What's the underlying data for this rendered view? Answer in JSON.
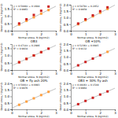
{
  "chart_data": [
    {
      "type": "scatter",
      "annotations": [
        "y = 0.5089x + 0.1688",
        "R² = 0.9963"
      ],
      "x_label": "Normal stress, N (kg/cm2)",
      "y_label": "Shear stress, t (kg/cm2)",
      "xlim": [
        0,
        3
      ],
      "ylim": [
        0,
        1.8
      ],
      "xticks": [
        0,
        1,
        2,
        3
      ],
      "yticks": [
        {
          "value": 0,
          "label": "0.0"
        },
        0.5,
        {
          "value": 1.0,
          "label": "1.0"
        },
        1.5
      ],
      "grid": false,
      "series": [
        {
          "type": "line",
          "color": "#999999",
          "x": [
            0,
            3
          ],
          "values": [
            0.1688,
            1.6955
          ]
        },
        {
          "color": "#FFA040",
          "marker": "square",
          "x": [
            0.5,
            1.0,
            1.5,
            2.0,
            2.5
          ],
          "values": [
            0.42,
            0.68,
            0.93,
            1.18,
            1.43
          ]
        },
        {
          "color": "#CC2222",
          "marker": "square",
          "x": [
            0.5,
            1.0,
            1.5,
            2.0,
            2.5
          ],
          "values": [
            0.5,
            0.79,
            1.09,
            1.38,
            1.67
          ]
        }
      ]
    },
    {
      "type": "scatter",
      "annotations": [
        "y = 0.5879x + 0.2052",
        "R² = 0.9959"
      ],
      "x_label": "Normal stress, N (kg/cm2)",
      "y_label": "Shear stress, t (kg/cm2)",
      "xlim": [
        0,
        3
      ],
      "ylim": [
        0,
        2.0
      ],
      "xticks": [
        0,
        1,
        2,
        3
      ],
      "yticks": [
        {
          "value": 0,
          "label": "0.0"
        },
        0.5,
        {
          "value": 1.0,
          "label": "1.0"
        },
        1.5,
        {
          "value": 2.0,
          "label": "2.0"
        }
      ],
      "grid": false,
      "series": [
        {
          "type": "line",
          "color": "#999999",
          "x": [
            0,
            3
          ],
          "values": [
            0.2052,
            1.9689
          ]
        },
        {
          "color": "#FFA040",
          "marker": "square",
          "x": [
            0.5,
            1.0,
            1.5,
            2.0,
            2.5
          ],
          "values": [
            0.5,
            0.8,
            1.1,
            1.38,
            1.67
          ]
        },
        {
          "color": "#CC2222",
          "marker": "square",
          "x": [
            0.5,
            1.0,
            1.5,
            2.0,
            2.5
          ],
          "values": [
            0.55,
            0.88,
            1.18,
            1.5,
            1.8
          ]
        }
      ]
    },
    {
      "type": "scatter",
      "title": "OB3",
      "annotations": [
        "y = 0.4714x + 0.2986",
        "R² = 0.9934"
      ],
      "x_label": "Normal stress, N (kg/cm2)",
      "y_label": "Shear stress, t (kg/cm2)",
      "xlim": [
        0,
        3
      ],
      "ylim": [
        0,
        1.8
      ],
      "xticks": [
        0,
        1,
        2,
        3
      ],
      "yticks": [
        {
          "value": 0,
          "label": "0.0"
        },
        0.5,
        {
          "value": 1.0,
          "label": "1.0"
        },
        1.5
      ],
      "grid": false,
      "series": [
        {
          "type": "line",
          "color": "#999999",
          "x": [
            0,
            3
          ],
          "values": [
            0.2986,
            1.7128
          ]
        },
        {
          "color": "#FFA040",
          "marker": "square",
          "x": [
            0.5,
            1.0,
            1.5,
            2.0
          ],
          "values": [
            0.54,
            0.77,
            1.01,
            1.24
          ]
        },
        {
          "color": "#CC2222",
          "marker": "square",
          "x": [
            0.5,
            1.0,
            1.5,
            2.0,
            2.5
          ],
          "values": [
            0.54,
            0.77,
            1.01,
            1.24,
            1.48
          ]
        }
      ]
    },
    {
      "type": "scatter",
      "title": "OB +10%",
      "annotations": [
        "y = 0.5236x + 0.0945",
        "R² = 0.9132"
      ],
      "x_label": "Normal stress, N (kg/cm2)",
      "y_label": "Shear stress, t (kg/cm2)",
      "xlim": [
        0,
        3
      ],
      "ylim": [
        0,
        2.0
      ],
      "xticks": [
        0,
        1,
        2,
        3
      ],
      "yticks": [
        {
          "value": 0,
          "label": "0.0"
        },
        0.5,
        {
          "value": 1.0,
          "label": "1.0"
        },
        1.5,
        {
          "value": 2.0,
          "label": "2.0"
        }
      ],
      "grid": false,
      "series": [
        {
          "type": "line",
          "color": "#999999",
          "x": [
            0,
            3
          ],
          "values": [
            0.0945,
            1.6653
          ]
        },
        {
          "color": "#FFA040",
          "marker": "square",
          "x": [
            2.5
          ],
          "values": [
            1.4
          ]
        },
        {
          "color": "#CC2222",
          "marker": "square",
          "x": [
            0.5,
            1.0,
            1.5,
            2.0
          ],
          "values": [
            0.36,
            0.62,
            0.88,
            1.14
          ]
        }
      ]
    },
    {
      "type": "scatter",
      "title": "OB + fly ash 20%",
      "annotations": [
        "y = 0.5001x + 0.0993",
        "R² = 0.9976"
      ],
      "x_label": "Normal stress, N (kg/cm2)",
      "y_label": "Shear stress, t (kg/cm2)",
      "xlim": [
        0,
        3
      ],
      "ylim": [
        0,
        2.0
      ],
      "xticks": [
        0,
        1,
        2,
        3
      ],
      "yticks": [
        {
          "value": 0,
          "label": "0.0"
        },
        0.5,
        {
          "value": 1.0,
          "label": "1.0"
        },
        1.5,
        {
          "value": 2.0,
          "label": "2.0"
        }
      ],
      "grid": false,
      "series": [
        {
          "type": "line",
          "color": "#999999",
          "x": [
            0,
            3
          ],
          "values": [
            0.0993,
            1.5996
          ]
        },
        {
          "color": "#FFA040",
          "marker": "square",
          "x": [
            0.5,
            1.0,
            1.5,
            2.0,
            2.5
          ],
          "values": [
            0.35,
            0.6,
            0.85,
            1.1,
            1.35
          ]
        }
      ]
    },
    {
      "type": "scatter",
      "title": "OB3 + 30% fly ash",
      "annotations": [
        "y = 0.4916x + 0.1549",
        "R² = 0.9964"
      ],
      "x_label": "Normal stress, N (kg/cm2)",
      "y_label": "Shear stress, t (kg/cm2)",
      "xlim": [
        0,
        3
      ],
      "ylim": [
        0,
        2.0
      ],
      "xticks": [
        0,
        1,
        2,
        3
      ],
      "yticks": [
        {
          "value": 0,
          "label": "0.0"
        },
        0.5,
        {
          "value": 1.0,
          "label": "1.0"
        },
        1.5,
        {
          "value": 2.0,
          "label": "2.0"
        }
      ],
      "grid": false,
      "series": [
        {
          "type": "line",
          "color": "#999999",
          "x": [
            0,
            3
          ],
          "values": [
            0.1549,
            1.6297
          ]
        },
        {
          "color": "#CC2222",
          "marker": "square",
          "x": [
            0.5,
            1.0,
            1.5,
            2.0,
            2.5
          ],
          "values": [
            0.4,
            0.65,
            0.89,
            1.14,
            1.38
          ]
        }
      ]
    }
  ]
}
